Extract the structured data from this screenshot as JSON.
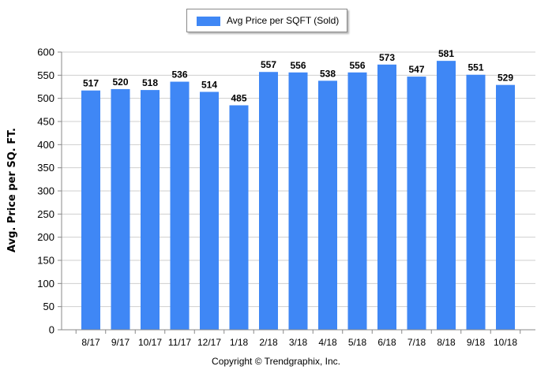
{
  "chart_data": {
    "type": "bar",
    "categories": [
      "8/17",
      "9/17",
      "10/17",
      "11/17",
      "12/17",
      "1/18",
      "2/18",
      "3/18",
      "4/18",
      "5/18",
      "6/18",
      "7/18",
      "8/18",
      "9/18",
      "10/18"
    ],
    "series": [
      {
        "name": "Avg Price per SQFT (Sold)",
        "values": [
          517,
          520,
          518,
          536,
          514,
          485,
          557,
          556,
          538,
          556,
          573,
          547,
          581,
          551,
          529
        ]
      }
    ],
    "ylabel": "Avg. Price per SQ. FT.",
    "xlabel": "",
    "ylim": [
      0,
      600
    ],
    "yticks": [
      0,
      50,
      100,
      150,
      200,
      250,
      300,
      350,
      400,
      450,
      500,
      550,
      600
    ],
    "grid": true,
    "legend_position": "top-center",
    "bar_color": "#3f87f5"
  },
  "footer": {
    "copyright": "Copyright © Trendgraphix, Inc."
  }
}
